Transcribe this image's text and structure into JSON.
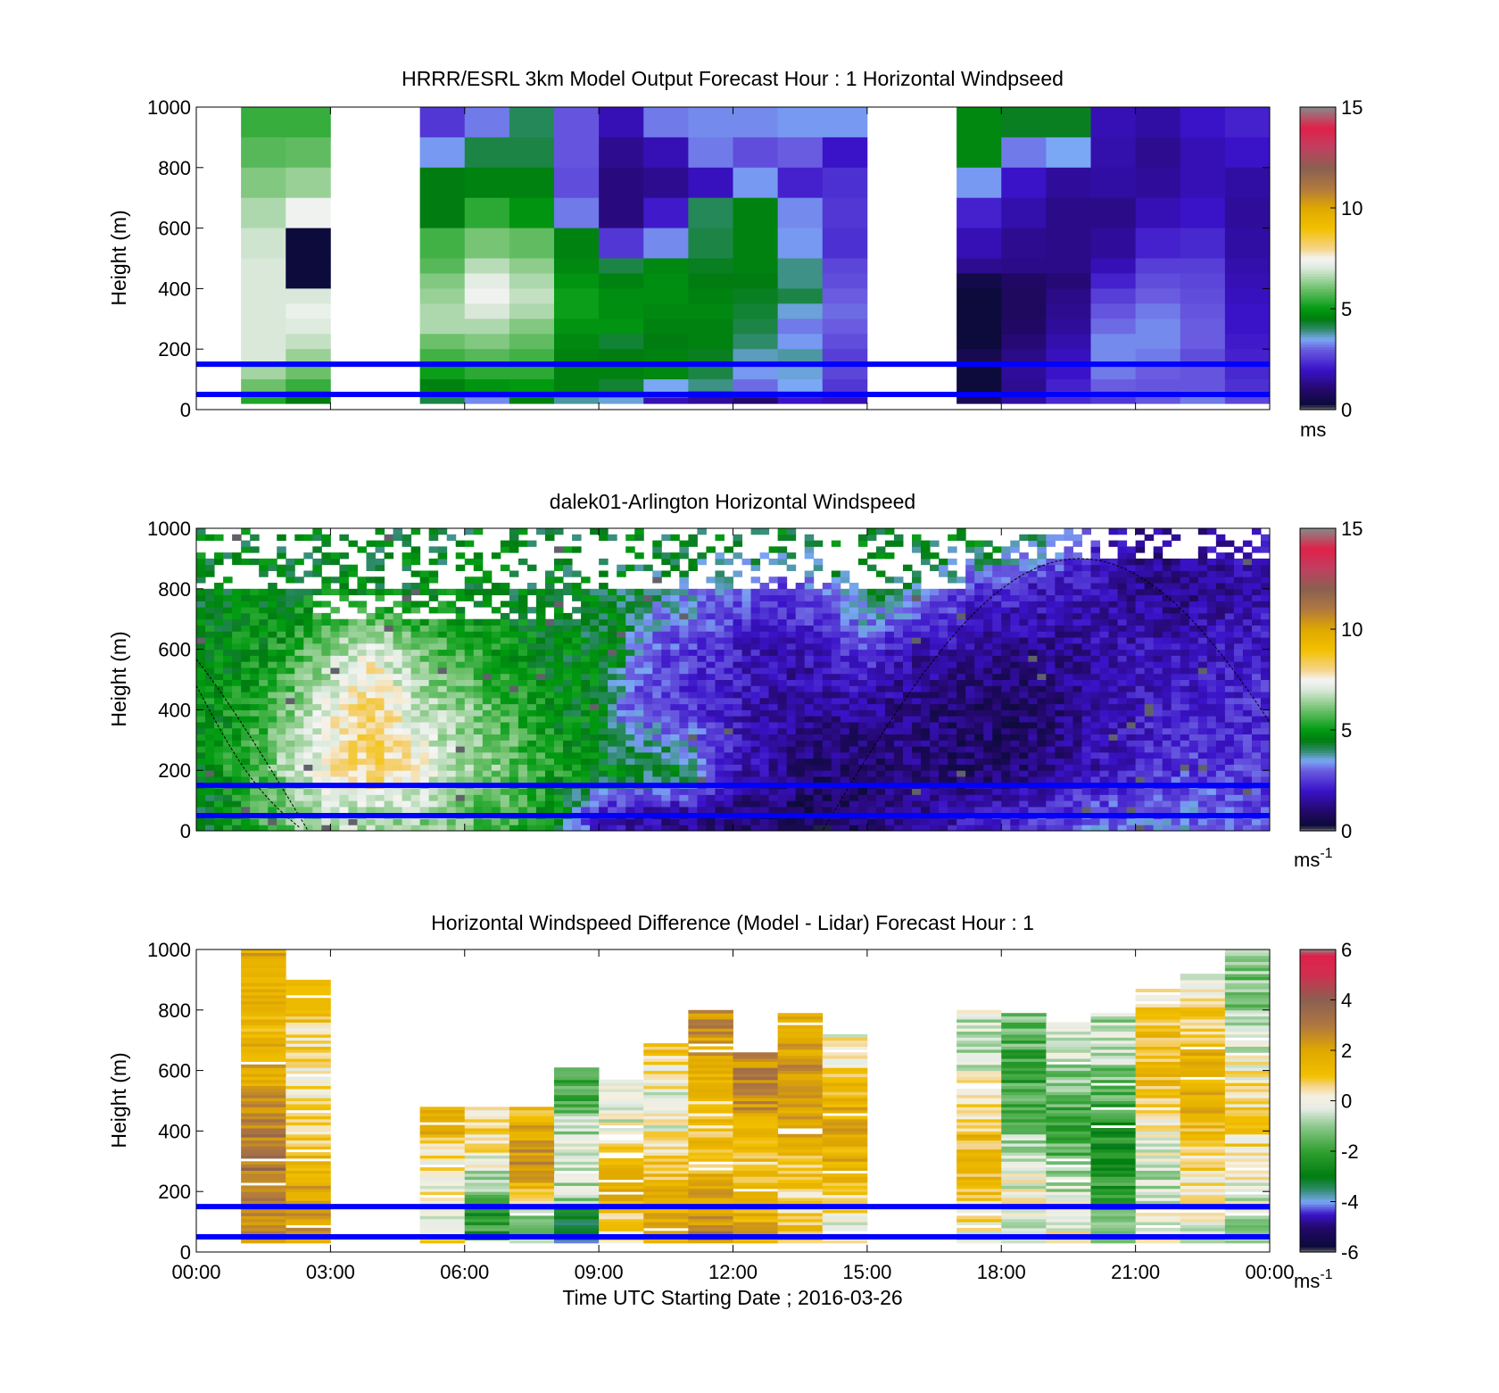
{
  "figure": {
    "xlabel": "Time UTC  Starting Date ; 2016-03-26",
    "x_ticks": [
      "00:00",
      "03:00",
      "06:00",
      "09:00",
      "12:00",
      "15:00",
      "18:00",
      "21:00",
      "00:00"
    ],
    "y_ticks": [
      "0",
      "200",
      "400",
      "600",
      "800",
      "1000"
    ],
    "ylabel": "Height (m)",
    "reference_lines_m": [
      50,
      150
    ],
    "reference_line_color": "#0000ff"
  },
  "chart_data": [
    {
      "type": "heatmap",
      "title": "HRRR/ESRL 3km Model Output   Forecast Hour : 1 Horizontal Windpseed",
      "ylabel": "Height (m)",
      "ylim": [
        0,
        1000
      ],
      "xlim_hours": [
        0,
        24
      ],
      "colorbar": {
        "ticks": [
          "0",
          "5",
          "10",
          "15"
        ],
        "range": [
          0,
          15
        ],
        "unit": "ms"
      },
      "columns_start_hour": [
        1,
        2,
        5,
        6,
        7,
        8,
        9,
        10,
        11,
        12,
        13,
        14,
        17,
        18,
        19,
        20,
        21,
        22,
        23
      ],
      "column_width_hours": 1,
      "row_top_m": [
        1000,
        900,
        800,
        700,
        600,
        500,
        450,
        400,
        350,
        300,
        250,
        200,
        150,
        100,
        60,
        40
      ],
      "values_ms": [
        [
          5.5,
          5.8,
          6.2,
          6.6,
          6.9,
          7.0,
          7.0,
          7.0,
          7.0,
          7.0,
          7.0,
          7.0,
          6.5,
          6.0,
          5.5,
          5.3
        ],
        [
          5.5,
          5.9,
          6.4,
          7.4,
          0.3,
          0.3,
          0.3,
          7.0,
          7.3,
          7.1,
          6.8,
          6.4,
          6.0,
          5.5,
          4.5,
          4.5
        ],
        [
          2.5,
          3.4,
          4.5,
          4.5,
          5.6,
          5.8,
          6.2,
          6.4,
          6.6,
          6.6,
          6.0,
          5.6,
          5.1,
          4.6,
          4.2,
          4.2
        ],
        [
          3.2,
          4.2,
          4.6,
          5.4,
          6.1,
          6.7,
          7.2,
          7.4,
          7.0,
          6.6,
          6.2,
          5.8,
          5.4,
          4.9,
          4.4,
          3.3
        ],
        [
          4.1,
          4.2,
          4.6,
          4.9,
          5.9,
          6.3,
          6.6,
          6.8,
          6.6,
          6.2,
          5.9,
          5.6,
          5.4,
          5.0,
          4.4,
          4.6
        ],
        [
          2.9,
          2.9,
          2.8,
          3.2,
          4.6,
          4.7,
          4.9,
          5.1,
          5.1,
          4.9,
          4.7,
          4.6,
          4.6,
          4.6,
          4.5,
          3.8
        ],
        [
          1.8,
          1.4,
          1.2,
          1.2,
          2.5,
          4.2,
          4.6,
          4.8,
          4.8,
          4.9,
          4.3,
          4.5,
          4.6,
          4.3,
          4.5,
          3.6
        ],
        [
          3.2,
          1.8,
          1.4,
          2.1,
          3.3,
          4.7,
          4.8,
          4.8,
          4.7,
          4.6,
          4.5,
          4.6,
          4.7,
          3.5,
          3.7,
          1.8
        ],
        [
          3.3,
          3.2,
          1.9,
          4.1,
          4.2,
          4.4,
          4.5,
          4.6,
          4.7,
          4.6,
          4.6,
          4.4,
          4.2,
          3.9,
          1.2,
          1.5
        ],
        [
          3.3,
          2.8,
          3.4,
          4.6,
          4.6,
          4.6,
          4.5,
          4.4,
          4.3,
          4.2,
          4.0,
          3.7,
          3.4,
          3.1,
          2.2,
          1.0
        ],
        [
          3.4,
          3.0,
          2.2,
          3.3,
          3.4,
          3.9,
          3.9,
          4.2,
          3.6,
          3.2,
          3.4,
          3.8,
          3.6,
          3.5,
          2.8,
          2.0
        ],
        [
          3.4,
          2.0,
          2.4,
          2.5,
          2.4,
          2.7,
          2.8,
          3.0,
          3.1,
          3.0,
          2.8,
          2.6,
          2.7,
          2.5,
          2.3,
          1.8
        ],
        [
          4.7,
          4.7,
          3.4,
          2.2,
          1.8,
          1.4,
          0.5,
          0.3,
          0.3,
          0.3,
          0.3,
          0.6,
          0.3,
          0.3,
          0.3,
          0.7
        ],
        [
          4.4,
          3.2,
          2.0,
          1.7,
          1.4,
          1.3,
          0.9,
          0.8,
          0.8,
          0.9,
          1.1,
          1.3,
          1.5,
          1.4,
          1.4,
          1.6
        ],
        [
          4.4,
          3.5,
          1.5,
          1.3,
          1.3,
          1.3,
          1.1,
          1.3,
          1.4,
          1.5,
          1.7,
          1.9,
          2.0,
          2.2,
          2.6,
          2.3
        ],
        [
          1.8,
          1.7,
          1.6,
          1.3,
          1.5,
          1.8,
          2.2,
          2.6,
          2.9,
          3.1,
          3.3,
          3.3,
          3.2,
          3.0,
          2.8,
          2.5
        ],
        [
          1.6,
          1.4,
          1.5,
          1.8,
          2.2,
          2.6,
          2.8,
          3.0,
          3.2,
          3.3,
          3.3,
          3.2,
          3.0,
          2.9,
          3.0,
          2.9
        ],
        [
          2.0,
          1.8,
          1.8,
          2.0,
          2.3,
          2.6,
          2.7,
          2.8,
          2.9,
          3.0,
          3.0,
          2.8,
          2.9,
          2.9,
          3.2,
          3.2
        ],
        [
          2.2,
          2.0,
          1.6,
          1.5,
          1.6,
          1.7,
          1.8,
          1.9,
          2.0,
          2.0,
          2.1,
          2.2,
          2.3,
          2.4,
          2.6,
          2.7
        ]
      ]
    },
    {
      "type": "heatmap",
      "title": "dalek01-Arlington  Horizontal Windspeed",
      "ylabel": "Height (m)",
      "ylim": [
        0,
        1000
      ],
      "xlim_hours": [
        0,
        24
      ],
      "colorbar": {
        "ticks": [
          "0",
          "5",
          "10",
          "15"
        ],
        "range": [
          0,
          15
        ],
        "unit": "ms",
        "unit_exp": "-1"
      },
      "time_series_hours": [
        0,
        1,
        2,
        3,
        4,
        5,
        6,
        7,
        8,
        9,
        9.5,
        10,
        11,
        12,
        13,
        14,
        15,
        16,
        17,
        18,
        19,
        20,
        21,
        22,
        23,
        24
      ],
      "height_m": [
        50,
        200,
        400,
        600,
        800,
        950
      ],
      "approx_speed_ms": [
        [
          4.3,
          4.6,
          4.8,
          4.8,
          4.5,
          4.6
        ],
        [
          5.0,
          5.3,
          5.0,
          4.8,
          4.7,
          4.6
        ],
        [
          6.0,
          6.5,
          6.0,
          5.2,
          4.6,
          4.5
        ],
        [
          6.8,
          7.6,
          7.2,
          6.4,
          4.8,
          4.5
        ],
        [
          6.6,
          8.5,
          8.4,
          7.2,
          4.6,
          4.5
        ],
        [
          6.4,
          7.5,
          6.8,
          6.0,
          4.6,
          4.5
        ],
        [
          6.0,
          6.6,
          6.3,
          5.4,
          4.6,
          4.5
        ],
        [
          5.5,
          6.0,
          5.5,
          5.0,
          4.5,
          4.5
        ],
        [
          5.0,
          5.2,
          4.8,
          4.6,
          4.5,
          4.5
        ],
        [
          2.0,
          4.8,
          4.6,
          4.5,
          4.4,
          4.5
        ],
        [
          1.8,
          4.6,
          3.2,
          4.4,
          4.3,
          4.5
        ],
        [
          1.6,
          4.5,
          2.8,
          3.0,
          4.2,
          4.5
        ],
        [
          1.4,
          4.4,
          2.4,
          2.6,
          3.6,
          4.4
        ],
        [
          1.2,
          2.0,
          2.0,
          2.2,
          3.0,
          4.4
        ],
        [
          0.9,
          1.4,
          1.6,
          1.8,
          2.6,
          4.4
        ],
        [
          0.8,
          1.0,
          1.4,
          2.0,
          3.2,
          4.5
        ],
        [
          1.0,
          1.0,
          1.4,
          2.6,
          4.2,
          4.5
        ],
        [
          1.4,
          1.2,
          1.2,
          1.8,
          4.0,
          4.5
        ],
        [
          1.8,
          1.0,
          1.0,
          1.6,
          2.8,
          4.5
        ],
        [
          2.2,
          1.0,
          0.9,
          1.2,
          2.4,
          4.5
        ],
        [
          2.6,
          1.2,
          1.0,
          1.4,
          2.0,
          3.8
        ],
        [
          3.0,
          1.8,
          1.6,
          1.6,
          1.8,
          2.6
        ],
        [
          3.0,
          2.2,
          2.0,
          1.8,
          1.4,
          1.6
        ],
        [
          3.2,
          2.6,
          2.2,
          1.8,
          1.2,
          1.4
        ],
        [
          3.0,
          2.6,
          2.3,
          2.0,
          1.6,
          1.8
        ],
        [
          2.8,
          2.6,
          2.4,
          2.2,
          1.8,
          2.0
        ]
      ]
    },
    {
      "type": "heatmap",
      "title": "Horizontal Windspeed Difference (Model - Lidar) Forecast Hour : 1",
      "xlabel": "Time UTC  Starting Date ; 2016-03-26",
      "ylabel": "Height (m)",
      "ylim": [
        0,
        1000
      ],
      "xlim_hours": [
        0,
        24
      ],
      "colorbar": {
        "ticks": [
          "-6",
          "-4",
          "-2",
          "0",
          "2",
          "4",
          "6"
        ],
        "range": [
          -6,
          6
        ],
        "unit": "ms",
        "unit_exp": "-1"
      },
      "columns_start_hour": [
        1,
        2,
        5,
        6,
        7,
        8,
        9,
        10,
        11,
        12,
        13,
        14,
        17,
        18,
        19,
        20,
        21,
        22,
        23
      ],
      "column_top_m": [
        1000,
        910,
        480,
        480,
        480,
        610,
        570,
        690,
        800,
        660,
        790,
        720,
        800,
        790,
        760,
        790,
        870,
        920,
        1000
      ],
      "column_mean_diff_ms": [
        2.2,
        1.2,
        1.0,
        -0.4,
        1.4,
        -1.2,
        0.6,
        0.8,
        1.8,
        1.8,
        1.6,
        0.9,
        0.4,
        -1.0,
        -0.8,
        -1.6,
        0.4,
        0.8,
        -0.3
      ]
    }
  ]
}
